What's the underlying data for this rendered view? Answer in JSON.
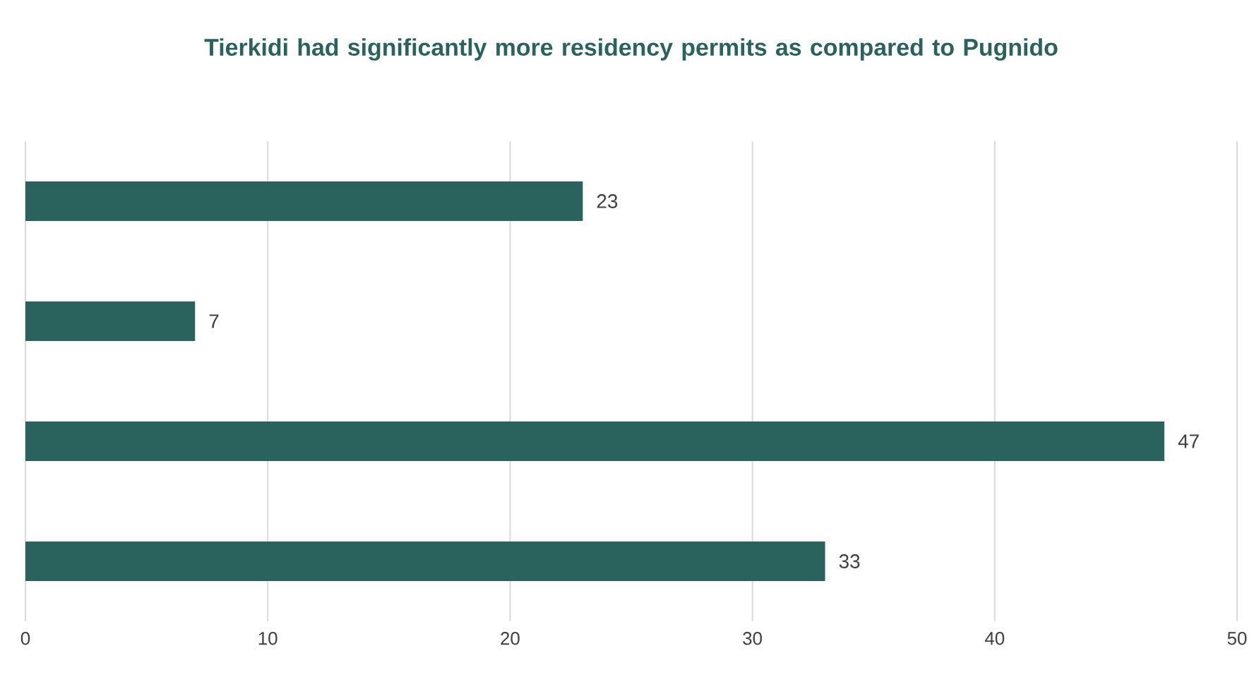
{
  "chart_data": {
    "type": "bar",
    "orientation": "horizontal",
    "title": "Tierkidi had significantly more residency permits as compared to Pugnido",
    "categories": [
      null,
      null,
      null,
      null
    ],
    "values": [
      23,
      7,
      47,
      33
    ],
    "color": "#2a635e",
    "xlim": [
      0,
      50
    ],
    "xticks": [
      0,
      10,
      20,
      30,
      40,
      50
    ],
    "grid": "x",
    "data_labels": true
  }
}
